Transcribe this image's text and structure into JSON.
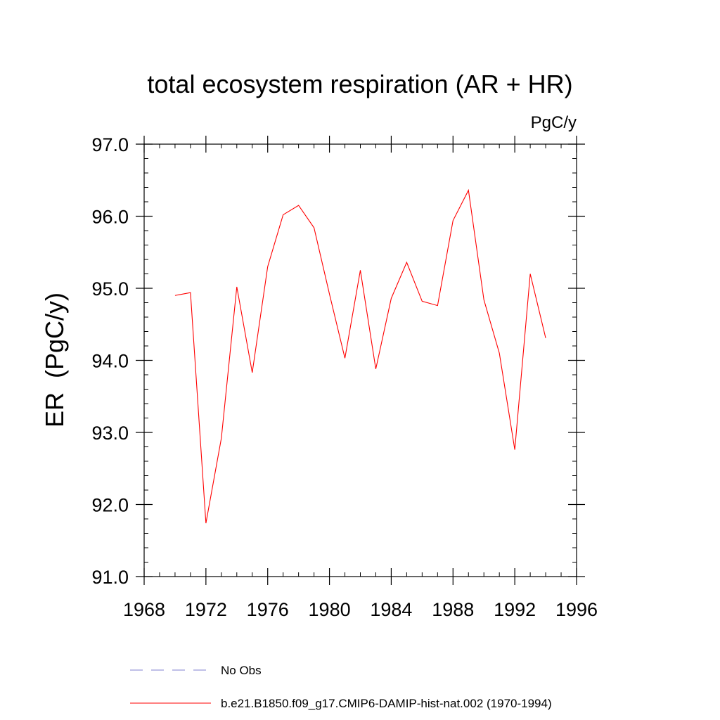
{
  "chart_data": {
    "type": "line",
    "title": "total ecosystem respiration (AR + HR)",
    "units_label": "PgC/y",
    "ylabel": "ER  (PgC/y)",
    "xlabel": "",
    "xlim": [
      1968,
      1996
    ],
    "ylim": [
      91.0,
      97.0
    ],
    "xticks": [
      "1968",
      "1972",
      "1976",
      "1980",
      "1984",
      "1988",
      "1992",
      "1996"
    ],
    "yticks": [
      "91.0",
      "92.0",
      "93.0",
      "94.0",
      "95.0",
      "96.0",
      "97.0"
    ],
    "grid": false,
    "legend_position": "bottom",
    "legend": [
      {
        "name": "No Obs",
        "color": "#8080d0",
        "style": "dashed"
      },
      {
        "name": "b.e21.B1850.f09_g17.CMIP6-DAMIP-hist-nat.002 (1970-1994)",
        "color": "#ff0000",
        "style": "solid"
      }
    ],
    "series": [
      {
        "name": "b.e21.B1850.f09_g17.CMIP6-DAMIP-hist-nat.002 (1970-1994)",
        "color": "#ff0000",
        "x": [
          1970,
          1971,
          1972,
          1973,
          1974,
          1975,
          1976,
          1977,
          1978,
          1979,
          1980,
          1981,
          1982,
          1983,
          1984,
          1985,
          1986,
          1987,
          1988,
          1989,
          1990,
          1991,
          1992,
          1993,
          1994
        ],
        "values": [
          94.9,
          94.94,
          91.74,
          92.92,
          95.02,
          93.83,
          95.3,
          96.02,
          96.15,
          95.84,
          94.92,
          94.03,
          95.25,
          93.88,
          94.86,
          95.36,
          94.82,
          94.76,
          95.94,
          96.36,
          94.84,
          94.1,
          92.76,
          95.2,
          94.31
        ]
      }
    ]
  }
}
